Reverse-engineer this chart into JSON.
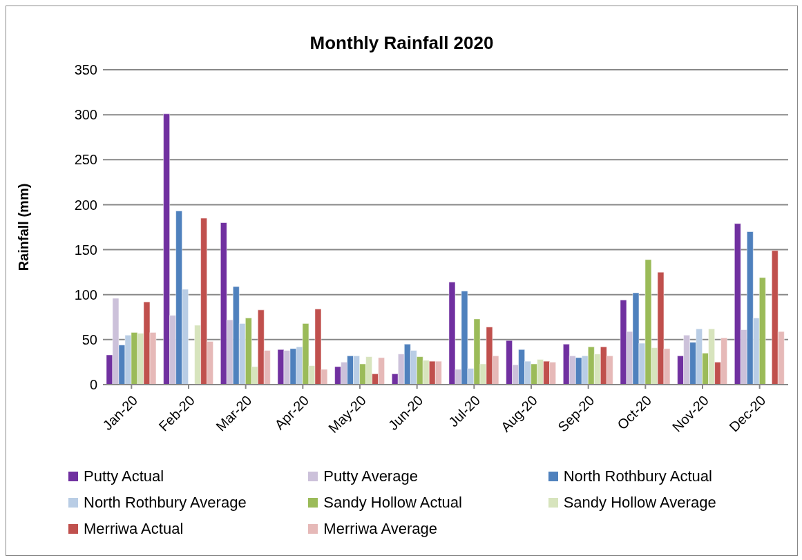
{
  "chart_data": {
    "type": "bar",
    "title": "Monthly Rainfall 2020",
    "ylabel": "Rainfall (mm)",
    "categories": [
      "Jan-20",
      "Feb-20",
      "Mar-20",
      "Apr-20",
      "May-20",
      "Jun-20",
      "Jul-20",
      "Aug-20",
      "Sep-20",
      "Oct-20",
      "Nov-20",
      "Dec-20"
    ],
    "series": [
      {
        "name": "Putty Actual",
        "color": "#7030a0",
        "values": [
          33,
          301,
          180,
          39,
          20,
          12,
          114,
          49,
          45,
          94,
          32,
          179
        ]
      },
      {
        "name": "Putty Average",
        "color": "#ccc1da",
        "values": [
          96,
          77,
          72,
          38,
          25,
          34,
          17,
          22,
          32,
          59,
          55,
          61
        ]
      },
      {
        "name": "North Rothbury Actual",
        "color": "#4f81bd",
        "values": [
          44,
          193,
          109,
          40,
          32,
          45,
          104,
          39,
          30,
          102,
          47,
          170
        ]
      },
      {
        "name": "North Rothbury Average",
        "color": "#b9cde5",
        "values": [
          55,
          106,
          68,
          42,
          32,
          38,
          18,
          26,
          32,
          46,
          62,
          74
        ]
      },
      {
        "name": "Sandy Hollow Actual",
        "color": "#9bbb59",
        "values": [
          58,
          null,
          74,
          68,
          23,
          31,
          73,
          23,
          42,
          139,
          35,
          119
        ]
      },
      {
        "name": "Sandy Hollow Average",
        "color": "#d7e4bd",
        "values": [
          57,
          66,
          20,
          21,
          31,
          27,
          23,
          28,
          34,
          41,
          62,
          null
        ]
      },
      {
        "name": "Merriwa Actual",
        "color": "#c0504d",
        "values": [
          92,
          185,
          83,
          84,
          12,
          26,
          64,
          26,
          42,
          125,
          25,
          149
        ]
      },
      {
        "name": "Merriwa Average",
        "color": "#e6b9b8",
        "values": [
          58,
          48,
          38,
          17,
          30,
          26,
          32,
          25,
          32,
          40,
          52,
          59
        ]
      }
    ],
    "ylim": [
      0,
      350
    ],
    "yticks": [
      0,
      50,
      100,
      150,
      200,
      250,
      300,
      350
    ],
    "grid": "y",
    "legend": "bottom"
  }
}
